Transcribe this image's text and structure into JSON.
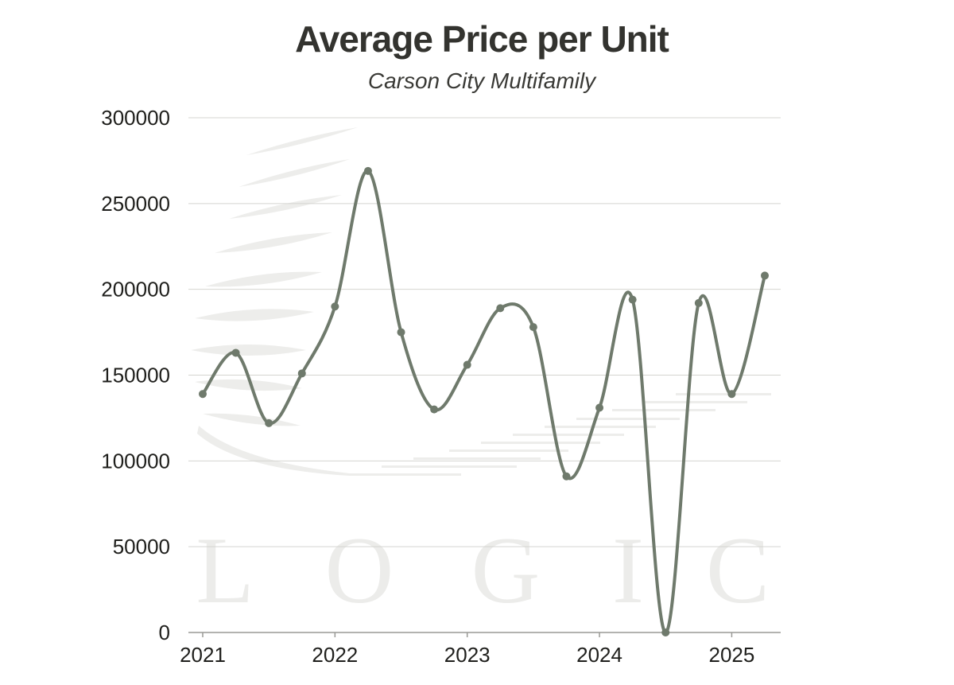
{
  "colors": {
    "line": "#6f7a6c",
    "grid": "#d4d4d0",
    "axis": "#9a9a96",
    "watermark": "#ededeb"
  },
  "watermark": {
    "text": "LOGIC",
    "icon": "logic-logo-icon"
  },
  "chart_data": {
    "type": "line",
    "title": "Average Price per Unit",
    "subtitle": "Carson City Multifamily",
    "xlabel": "",
    "ylabel": "",
    "xlim": [
      2021,
      2025.25
    ],
    "ylim": [
      0,
      300000
    ],
    "y_ticks": [
      "0",
      "50000",
      "100000",
      "150000",
      "200000",
      "250000",
      "300000"
    ],
    "x_ticks": [
      "2021",
      "2022",
      "2023",
      "2024",
      "2025"
    ],
    "grid": "horizontal",
    "legend": "none",
    "smooth": true,
    "series": [
      {
        "x": [
          2021,
          2021.25,
          2021.5,
          2021.75,
          2022,
          2022.25,
          2022.5,
          2022.75,
          2023,
          2023.25,
          2023.5,
          2023.75,
          2024,
          2024.25,
          2024.5,
          2024.75,
          2025,
          2025.25
        ],
        "values": [
          139000,
          163000,
          122000,
          151000,
          190000,
          269000,
          175000,
          130000,
          156000,
          189000,
          178000,
          91000,
          131000,
          194000,
          0,
          192000,
          139000,
          208000
        ]
      }
    ]
  }
}
